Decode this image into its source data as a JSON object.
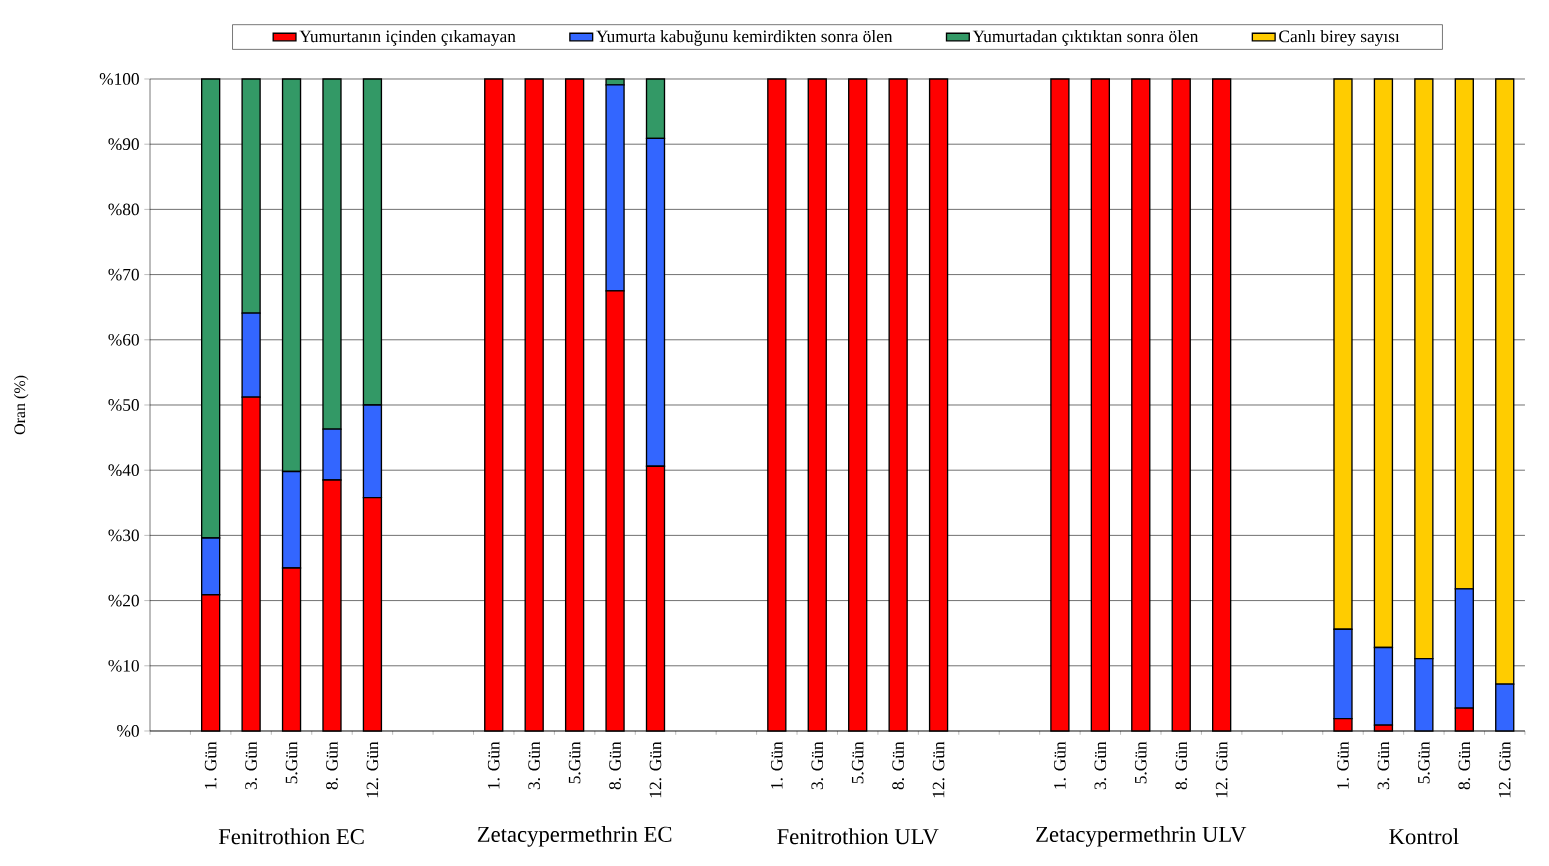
{
  "chart_data": {
    "type": "bar",
    "stacked": true,
    "ylabel": "Oran (%)",
    "categories": [
      null,
      "1. Gün",
      "3. Gün",
      "5.Gün",
      "8. Gün",
      "12. Gün",
      null,
      null,
      "1. Gün",
      "3. Gün",
      "5.Gün",
      "8. Gün",
      "12. Gün",
      null,
      null,
      "1. Gün",
      "3. Gün",
      "5.Gün",
      "8. Gün",
      "12. Gün",
      null,
      null,
      "1. Gün",
      "3. Gün",
      "5.Gün",
      "8. Gün",
      "12. Gün",
      null,
      null,
      "1. Gün",
      "3. Gün",
      "5.Gün",
      "8. Gün",
      "12. Gün"
    ],
    "series": [
      {
        "name": "Yumurtanın içinden çıkamayan",
        "color": "#ff0000",
        "values": [
          null,
          20.9,
          51.2,
          25.0,
          38.5,
          35.8,
          null,
          null,
          100,
          100,
          100,
          67.5,
          40.6,
          null,
          null,
          100,
          100,
          100,
          100,
          100,
          null,
          null,
          100,
          100,
          100,
          100,
          100,
          null,
          null,
          1.9,
          0.9,
          null,
          3.5,
          null
        ]
      },
      {
        "name": "Yumurta kabuğunu kemirdikten sonra ölen",
        "color": "#3366ff",
        "values": [
          null,
          8.7,
          12.9,
          14.8,
          7.8,
          14.2,
          null,
          null,
          null,
          null,
          null,
          31.6,
          50.3,
          null,
          null,
          null,
          null,
          null,
          null,
          null,
          null,
          null,
          null,
          null,
          null,
          null,
          null,
          null,
          null,
          13.7,
          11.9,
          11.1,
          18.3,
          7.2
        ]
      },
      {
        "name": "Yumurtadan çıktıktan sonra ölen",
        "color": "#339966",
        "values": [
          null,
          70.4,
          35.9,
          60.2,
          53.7,
          50.0,
          null,
          null,
          null,
          null,
          null,
          0.9,
          9.1,
          null,
          null,
          null,
          null,
          null,
          null,
          null,
          null,
          null,
          null,
          null,
          null,
          null,
          null,
          null,
          null,
          null,
          null,
          null,
          null,
          null
        ]
      },
      {
        "name": "Canlı birey sayısı",
        "color": "#ffcc00",
        "values": [
          null,
          null,
          null,
          null,
          null,
          null,
          null,
          null,
          null,
          null,
          null,
          null,
          null,
          null,
          null,
          null,
          null,
          null,
          null,
          null,
          null,
          null,
          null,
          null,
          null,
          null,
          null,
          null,
          null,
          84.4,
          87.2,
          88.9,
          78.2,
          92.8
        ]
      }
    ],
    "ylim": [
      0,
      100
    ],
    "yticks": [
      {
        "value": 0,
        "label": "%0"
      },
      {
        "value": 10,
        "label": "%10"
      },
      {
        "value": 20,
        "label": "%20"
      },
      {
        "value": 30,
        "label": "%30"
      },
      {
        "value": 40,
        "label": "%40"
      },
      {
        "value": 50,
        "label": "%50"
      },
      {
        "value": 60,
        "label": "%60"
      },
      {
        "value": 70,
        "label": "%70"
      },
      {
        "value": 80,
        "label": "%80"
      },
      {
        "value": 90,
        "label": "%90"
      },
      {
        "value": 100,
        "label": "%100"
      }
    ],
    "grid": "y",
    "legend": "top",
    "annotations": [
      "Fenitrothion EC",
      "Zetacypermethrin EC",
      "Fenitrothion ULV",
      "Zetacypermethrin ULV",
      "Kontrol"
    ]
  }
}
